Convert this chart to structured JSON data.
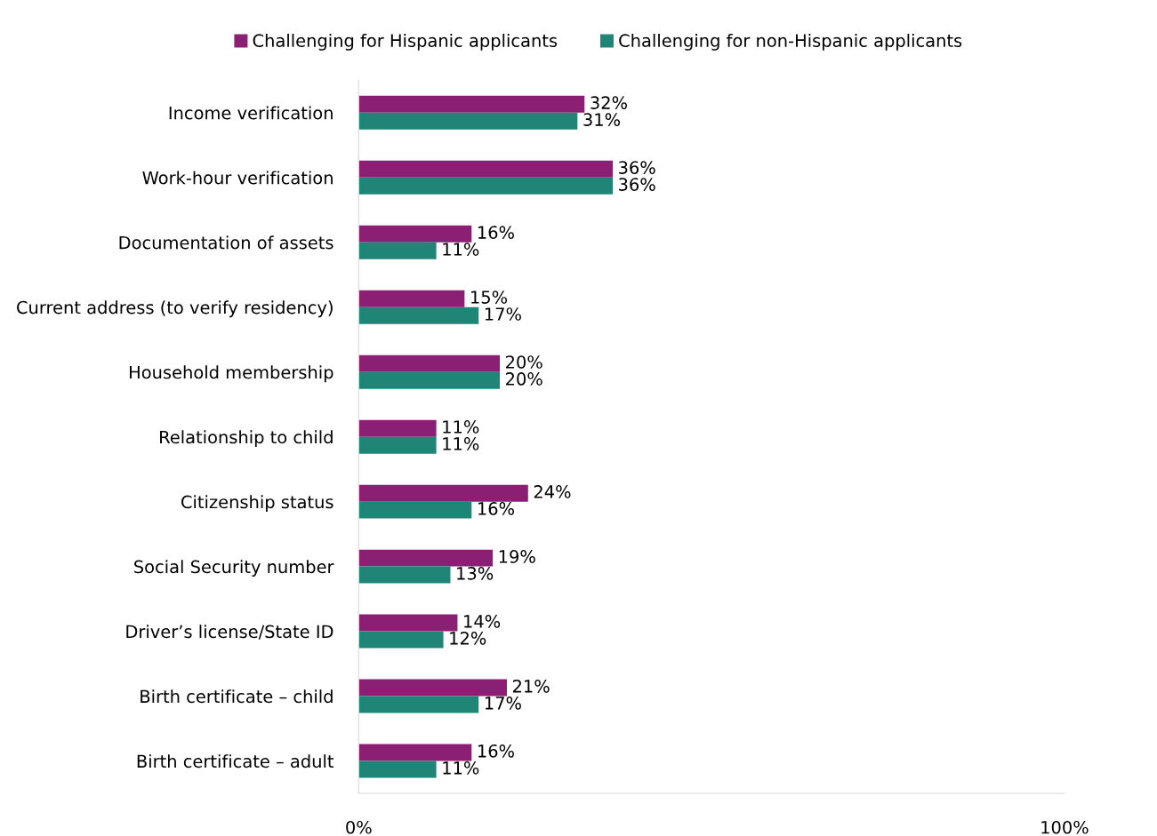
{
  "chart_data": {
    "type": "bar",
    "orientation": "horizontal",
    "categories": [
      "Income verification",
      "Work-hour verification",
      "Documentation of assets",
      "Current address (to verify residency)",
      "Household membership",
      "Relationship to child",
      "Citizenship status",
      "Social Security number",
      "Driver’s license/State ID",
      "Birth certificate – child",
      "Birth certificate – adult"
    ],
    "series": [
      {
        "name": "Challenging for Hispanic applicants",
        "color": "#8b1f74",
        "values": [
          32,
          36,
          16,
          15,
          20,
          11,
          24,
          19,
          14,
          21,
          16
        ],
        "value_labels": [
          "32%",
          "36%",
          "16%",
          "15%",
          "20%",
          "11%",
          "24%",
          "19%",
          "14%",
          "21%",
          "16%"
        ]
      },
      {
        "name": "Challenging for non-Hispanic applicants",
        "color": "#1e8577",
        "values": [
          31,
          36,
          11,
          17,
          20,
          11,
          16,
          13,
          12,
          17,
          11
        ],
        "value_labels": [
          "31%",
          "36%",
          "11%",
          "17%",
          "20%",
          "11%",
          "16%",
          "13%",
          "12%",
          "17%",
          "11%"
        ]
      }
    ],
    "xlim": [
      0,
      100
    ],
    "xticks": [
      {
        "value": 0,
        "label": "0%"
      },
      {
        "value": 100,
        "label": "100%"
      }
    ],
    "grid": false,
    "legend": "top"
  }
}
